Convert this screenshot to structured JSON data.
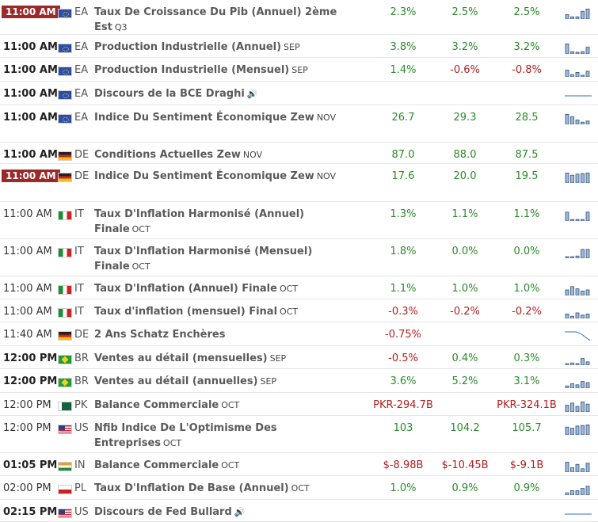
{
  "rows": [
    {
      "time": "11:00 AM",
      "time_style": "badge",
      "flag": "eu",
      "country": "EA",
      "event": "Taux De Croissance Du Pib (Annuel) 2ème Est",
      "period": "Q3",
      "actual": "2.3%",
      "actual_tone": "pos",
      "forecast": "2.5%",
      "forecast_tone": "pos",
      "previous": "2.5%",
      "previous_tone": "pos",
      "spark": [
        40,
        20,
        20,
        70,
        90
      ]
    },
    {
      "time": "11:00 AM",
      "time_style": "bold",
      "flag": "eu",
      "country": "EA",
      "event": "Production Industrielle (Annuel)",
      "period": "SEP",
      "actual": "3.8%",
      "actual_tone": "pos",
      "forecast": "3.2%",
      "forecast_tone": "pos",
      "previous": "3.2%",
      "previous_tone": "pos",
      "spark": [
        90,
        20,
        10,
        20,
        60
      ]
    },
    {
      "time": "11:00 AM",
      "time_style": "bold",
      "flag": "eu",
      "country": "EA",
      "event": "Production Industrielle (Mensuel)",
      "period": "SEP",
      "actual": "1.4%",
      "actual_tone": "pos",
      "forecast": "-0.6%",
      "forecast_tone": "neg",
      "previous": "-0.8%",
      "previous_tone": "neg",
      "spark": [
        60,
        20,
        40,
        15,
        50
      ]
    },
    {
      "time": "11:00 AM",
      "time_style": "bold",
      "flag": "eu",
      "country": "EA",
      "event": "Discours de la BCE Draghi",
      "period": "",
      "sound": "🔊",
      "actual": "",
      "actual_tone": "",
      "forecast": "",
      "forecast_tone": "",
      "previous": "",
      "previous_tone": "",
      "spark": []
    },
    {
      "time": "11:00 AM",
      "time_style": "bold",
      "flag": "eu",
      "country": "EA",
      "event": "Indice Du Sentiment Économique Zew",
      "period": "NOV",
      "actual": "26.7",
      "actual_tone": "pos",
      "forecast": "29.3",
      "forecast_tone": "pos",
      "previous": "28.5",
      "previous_tone": "pos",
      "spark": [
        90,
        70,
        40,
        20,
        30
      ]
    },
    {
      "time": "11:00 AM",
      "time_style": "bold",
      "flag": "de",
      "country": "DE",
      "event": "Conditions Actuelles Zew",
      "period": "NOV",
      "actual": "87.0",
      "actual_tone": "pos",
      "forecast": "88.0",
      "forecast_tone": "pos",
      "previous": "87.5",
      "previous_tone": "pos",
      "spark": []
    },
    {
      "time": "11:00 AM",
      "time_style": "badge",
      "flag": "de",
      "country": "DE",
      "event": "Indice Du Sentiment Économique Zew",
      "period": "NOV",
      "actual": "17.6",
      "actual_tone": "pos",
      "forecast": "20.0",
      "forecast_tone": "pos",
      "previous": "19.5",
      "previous_tone": "pos",
      "spark": [
        90,
        70,
        80,
        85,
        90
      ]
    },
    {
      "time": "11:00 AM",
      "time_style": "normal",
      "flag": "it",
      "country": "IT",
      "event": "Taux D'Inflation Harmonisé (Annuel) Finale",
      "period": "OCT",
      "actual": "1.3%",
      "actual_tone": "pos",
      "forecast": "1.1%",
      "forecast_tone": "pos",
      "previous": "1.1%",
      "previous_tone": "pos",
      "spark": [
        80,
        10,
        10,
        10,
        80
      ]
    },
    {
      "time": "11:00 AM",
      "time_style": "normal",
      "flag": "it",
      "country": "IT",
      "event": "Taux D'Inflation Harmonisé (Mensuel) Finale",
      "period": "OCT",
      "actual": "1.8%",
      "actual_tone": "pos",
      "forecast": "0.0%",
      "forecast_tone": "pos",
      "previous": "0.0%",
      "previous_tone": "pos",
      "spark": [
        10,
        10,
        20,
        80,
        80
      ]
    },
    {
      "time": "11:00 AM",
      "time_style": "normal",
      "flag": "it",
      "country": "IT",
      "event": "Taux D'Inflation (Annuel) Finale",
      "period": "OCT",
      "actual": "1.1%",
      "actual_tone": "pos",
      "forecast": "1.0%",
      "forecast_tone": "pos",
      "previous": "1.0%",
      "previous_tone": "pos",
      "spark": [
        50,
        80,
        60,
        40,
        50
      ]
    },
    {
      "time": "11:00 AM",
      "time_style": "normal",
      "flag": "it",
      "country": "IT",
      "event": "Taux d'inflation (mensuel) Final",
      "period": "OCT",
      "actual": "-0.3%",
      "actual_tone": "neg",
      "forecast": "-0.2%",
      "forecast_tone": "neg",
      "previous": "-0.2%",
      "previous_tone": "neg",
      "spark": [
        40,
        20,
        50,
        30,
        40
      ]
    },
    {
      "time": "11:40 AM",
      "time_style": "normal",
      "flag": "de",
      "country": "DE",
      "event": "2 Ans Schatz Enchères",
      "period": "",
      "actual": "-0.75%",
      "actual_tone": "neg",
      "forecast": "",
      "forecast_tone": "",
      "previous": "",
      "previous_tone": "",
      "spark": []
    },
    {
      "time": "12:00 PM",
      "time_style": "bold",
      "flag": "br",
      "country": "BR",
      "event": "Ventes au détail (mensuelles)",
      "period": "SEP",
      "actual": "-0.5%",
      "actual_tone": "neg",
      "forecast": "0.4%",
      "forecast_tone": "pos",
      "previous": "0.3%",
      "previous_tone": "pos",
      "spark": [
        10,
        20,
        10,
        60,
        30
      ]
    },
    {
      "time": "12:00 PM",
      "time_style": "bold",
      "flag": "br",
      "country": "BR",
      "event": "Ventes au détail (annuelles)",
      "period": "SEP",
      "actual": "3.6%",
      "actual_tone": "pos",
      "forecast": "5.2%",
      "forecast_tone": "pos",
      "previous": "3.1%",
      "previous_tone": "pos",
      "spark": [
        20,
        40,
        30,
        60,
        50
      ]
    },
    {
      "time": "12:00 PM",
      "time_style": "normal",
      "flag": "pk",
      "country": "PK",
      "event": "Balance Commerciale",
      "period": "OCT",
      "actual": "PKR-294.7B",
      "actual_tone": "neg",
      "forecast": "",
      "forecast_tone": "",
      "previous": "PKR-324.1B",
      "previous_tone": "neg",
      "spark": [
        60,
        80,
        50,
        90,
        70
      ]
    },
    {
      "time": "12:00 PM",
      "time_style": "normal",
      "flag": "us",
      "country": "US",
      "event": "Nfib Indice De L'Optimisme Des Entreprises",
      "period": "OCT",
      "actual": "103",
      "actual_tone": "pos",
      "forecast": "104.2",
      "forecast_tone": "pos",
      "previous": "105.7",
      "previous_tone": "pos",
      "spark": [
        70,
        60,
        80,
        85,
        90
      ]
    },
    {
      "time": "01:05 PM",
      "time_style": "bold",
      "flag": "in",
      "country": "IN",
      "event": "Balance Commerciale",
      "period": "OCT",
      "actual": "$-8.98B",
      "actual_tone": "neg",
      "forecast": "$-10.45B",
      "forecast_tone": "neg",
      "previous": "$-9.1B",
      "previous_tone": "neg",
      "spark": [
        90,
        40,
        70,
        30,
        80
      ]
    },
    {
      "time": "02:00 PM",
      "time_style": "normal",
      "flag": "pl",
      "country": "PL",
      "event": "Taux D'Inflation De Base (Annuel)",
      "period": "OCT",
      "actual": "1.0%",
      "actual_tone": "pos",
      "forecast": "0.9%",
      "forecast_tone": "pos",
      "previous": "0.9%",
      "previous_tone": "pos",
      "spark": [
        20,
        40,
        40,
        60,
        80
      ]
    },
    {
      "time": "02:15 PM",
      "time_style": "bold",
      "flag": "us",
      "country": "US",
      "event": "Discours de Fed Bullard",
      "period": "",
      "sound": "🔊",
      "actual": "",
      "actual_tone": "",
      "forecast": "",
      "forecast_tone": "",
      "previous": "",
      "previous_tone": "",
      "spark": []
    }
  ]
}
